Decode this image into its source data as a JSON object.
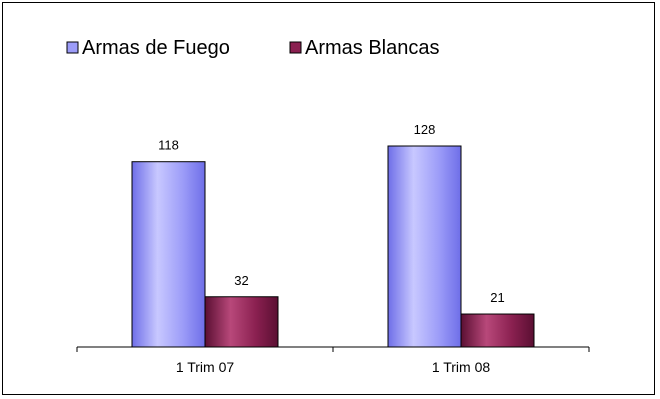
{
  "colors": {
    "series_1": "#9c9cf8",
    "series_1_light": "#c8c8ff",
    "series_1_dark": "#6e6ee8",
    "series_2": "#8a2050",
    "series_2_light": "#b8487a",
    "series_2_dark": "#5a0f32",
    "axis": "#000000",
    "frame": "#000000"
  },
  "chart_data": {
    "type": "bar",
    "title": "",
    "xlabel": "",
    "ylabel": "",
    "categories": [
      "1 Trim 07",
      "1 Trim 08"
    ],
    "series": [
      {
        "name": "Armas de Fuego",
        "values": [
          118,
          128
        ]
      },
      {
        "name": "Armas Blancas",
        "values": [
          32,
          21
        ]
      }
    ],
    "ylim": [
      0,
      140
    ],
    "grid": false,
    "legend_position": "top-left",
    "data_labels": true
  }
}
